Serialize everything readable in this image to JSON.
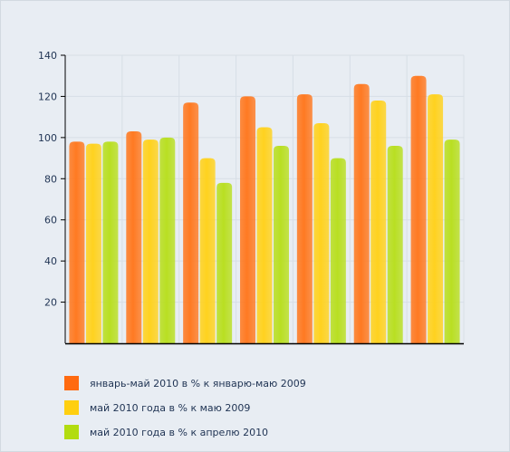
{
  "chart_data": {
    "type": "bar",
    "title": "",
    "xlabel": "",
    "ylabel": "",
    "ylim": [
      0,
      140
    ],
    "yticks": [
      20,
      40,
      60,
      80,
      100,
      120,
      140
    ],
    "grid": true,
    "legend_position": "bottom",
    "categories": [
      "",
      "",
      "",
      "",
      "",
      "",
      ""
    ],
    "series": [
      {
        "name": "январь-май 2010 в % к январю-маю 2009",
        "color": "#ff7a22",
        "values": [
          98,
          103,
          117,
          120,
          121,
          126,
          130
        ]
      },
      {
        "name": "май 2010 года в % к маю 2009",
        "color": "#ffd21f",
        "values": [
          97,
          99,
          90,
          105,
          107,
          118,
          121
        ]
      },
      {
        "name": "май 2010 года в % к  апрелю 2010",
        "color": "#b9df22",
        "values": [
          98,
          100,
          78,
          96,
          90,
          96,
          99
        ]
      }
    ]
  }
}
